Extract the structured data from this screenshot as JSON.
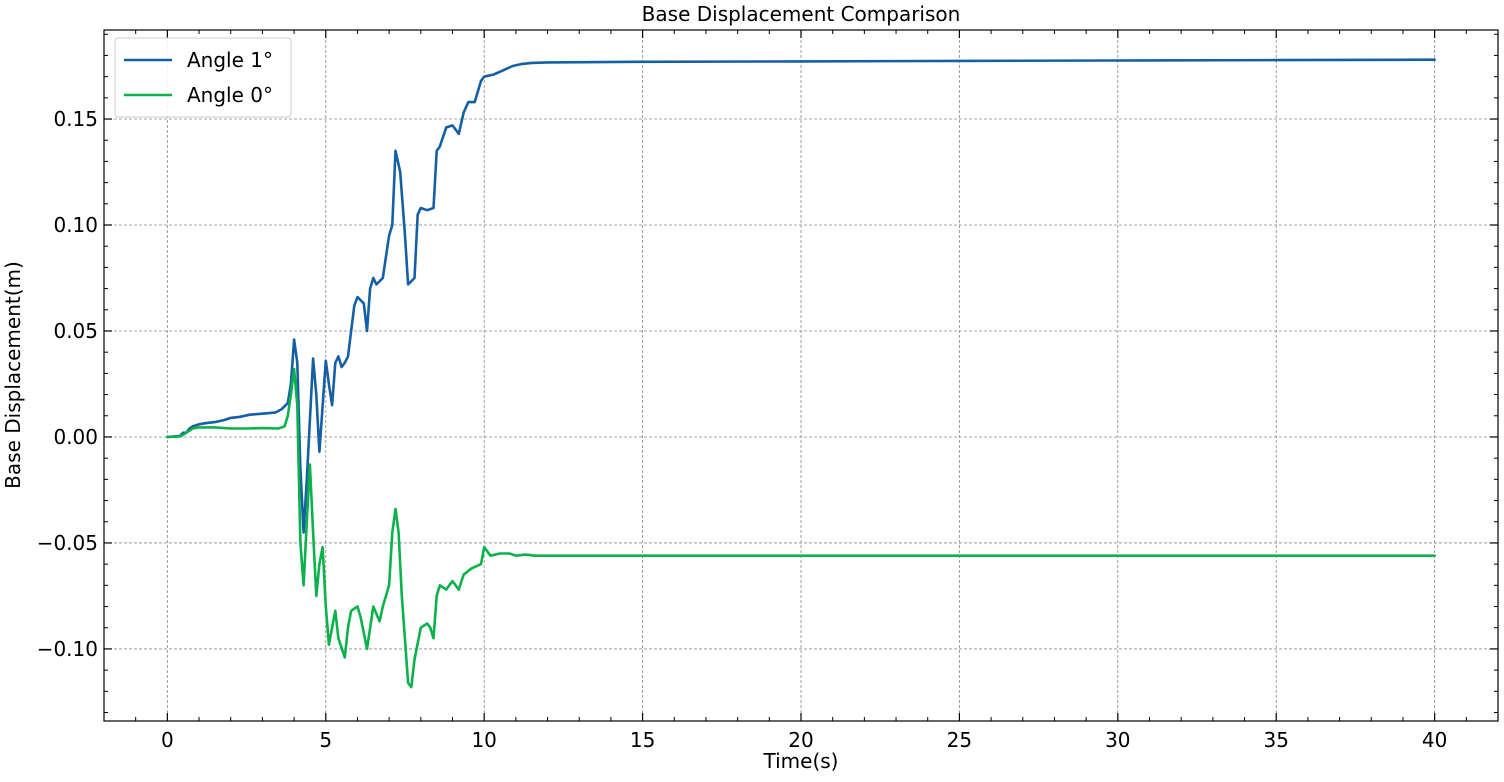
{
  "chart_data": {
    "type": "line",
    "title": "Base Displacement Comparison",
    "xlabel": "Time(s)",
    "ylabel": "Base Displacement(m)",
    "xlim": [
      -2,
      42
    ],
    "ylim": [
      -0.134,
      0.192
    ],
    "x_ticks": [
      0,
      5,
      10,
      15,
      20,
      25,
      30,
      35,
      40
    ],
    "x_tick_labels": [
      "0",
      "5",
      "10",
      "15",
      "20",
      "25",
      "30",
      "35",
      "40"
    ],
    "y_ticks": [
      -0.1,
      -0.05,
      0.0,
      0.05,
      0.1,
      0.15
    ],
    "y_tick_labels": [
      "−0.10",
      "−0.05",
      "0.00",
      "0.05",
      "0.10",
      "0.15"
    ],
    "grid": true,
    "legend_position": "top-left",
    "series": [
      {
        "name": "Angle 1°",
        "color": "#1560a5",
        "points": [
          [
            0,
            0.0
          ],
          [
            0.4,
            0.0005
          ],
          [
            0.5,
            0.002
          ],
          [
            0.6,
            0.002
          ],
          [
            0.7,
            0.004
          ],
          [
            0.8,
            0.005
          ],
          [
            1.0,
            0.006
          ],
          [
            1.2,
            0.0065
          ],
          [
            1.5,
            0.007
          ],
          [
            1.8,
            0.008
          ],
          [
            2.0,
            0.009
          ],
          [
            2.3,
            0.0095
          ],
          [
            2.6,
            0.0105
          ],
          [
            3.0,
            0.011
          ],
          [
            3.4,
            0.0115
          ],
          [
            3.6,
            0.013
          ],
          [
            3.8,
            0.016
          ],
          [
            3.9,
            0.025
          ],
          [
            4.0,
            0.046
          ],
          [
            4.1,
            0.035
          ],
          [
            4.2,
            -0.015
          ],
          [
            4.3,
            -0.045
          ],
          [
            4.4,
            -0.02
          ],
          [
            4.6,
            0.037
          ],
          [
            4.7,
            0.02
          ],
          [
            4.8,
            -0.007
          ],
          [
            5.0,
            0.036
          ],
          [
            5.1,
            0.025
          ],
          [
            5.2,
            0.015
          ],
          [
            5.3,
            0.035
          ],
          [
            5.4,
            0.038
          ],
          [
            5.5,
            0.033
          ],
          [
            5.6,
            0.035
          ],
          [
            5.7,
            0.038
          ],
          [
            5.9,
            0.062
          ],
          [
            6.0,
            0.066
          ],
          [
            6.2,
            0.063
          ],
          [
            6.3,
            0.05
          ],
          [
            6.4,
            0.07
          ],
          [
            6.5,
            0.075
          ],
          [
            6.6,
            0.072
          ],
          [
            6.8,
            0.075
          ],
          [
            7.0,
            0.095
          ],
          [
            7.1,
            0.1
          ],
          [
            7.2,
            0.135
          ],
          [
            7.35,
            0.125
          ],
          [
            7.5,
            0.095
          ],
          [
            7.6,
            0.072
          ],
          [
            7.8,
            0.075
          ],
          [
            7.9,
            0.105
          ],
          [
            8.0,
            0.108
          ],
          [
            8.2,
            0.107
          ],
          [
            8.4,
            0.108
          ],
          [
            8.5,
            0.135
          ],
          [
            8.6,
            0.137
          ],
          [
            8.8,
            0.146
          ],
          [
            9.0,
            0.147
          ],
          [
            9.2,
            0.143
          ],
          [
            9.35,
            0.153
          ],
          [
            9.5,
            0.158
          ],
          [
            9.7,
            0.158
          ],
          [
            9.9,
            0.168
          ],
          [
            10.0,
            0.17
          ],
          [
            10.3,
            0.171
          ],
          [
            10.6,
            0.173
          ],
          [
            10.9,
            0.175
          ],
          [
            11.2,
            0.176
          ],
          [
            11.5,
            0.1765
          ],
          [
            12.0,
            0.1767
          ],
          [
            15,
            0.177
          ],
          [
            20,
            0.1772
          ],
          [
            25,
            0.1774
          ],
          [
            30,
            0.1776
          ],
          [
            35,
            0.1778
          ],
          [
            40,
            0.178
          ]
        ]
      },
      {
        "name": "Angle 0°",
        "color": "#0db14b",
        "points": [
          [
            0,
            0.0
          ],
          [
            0.4,
            0.0002
          ],
          [
            0.5,
            0.001
          ],
          [
            0.7,
            0.003
          ],
          [
            0.8,
            0.004
          ],
          [
            1.0,
            0.0045
          ],
          [
            1.5,
            0.0045
          ],
          [
            2.0,
            0.004
          ],
          [
            2.5,
            0.004
          ],
          [
            3.0,
            0.0042
          ],
          [
            3.5,
            0.004
          ],
          [
            3.7,
            0.005
          ],
          [
            3.8,
            0.01
          ],
          [
            3.9,
            0.02
          ],
          [
            4.0,
            0.032
          ],
          [
            4.1,
            0.015
          ],
          [
            4.2,
            -0.05
          ],
          [
            4.3,
            -0.07
          ],
          [
            4.4,
            -0.04
          ],
          [
            4.5,
            -0.013
          ],
          [
            4.6,
            -0.045
          ],
          [
            4.7,
            -0.075
          ],
          [
            4.8,
            -0.06
          ],
          [
            4.9,
            -0.052
          ],
          [
            5.0,
            -0.08
          ],
          [
            5.1,
            -0.098
          ],
          [
            5.2,
            -0.09
          ],
          [
            5.3,
            -0.082
          ],
          [
            5.4,
            -0.095
          ],
          [
            5.6,
            -0.104
          ],
          [
            5.7,
            -0.09
          ],
          [
            5.8,
            -0.082
          ],
          [
            6.0,
            -0.08
          ],
          [
            6.1,
            -0.085
          ],
          [
            6.3,
            -0.1
          ],
          [
            6.5,
            -0.08
          ],
          [
            6.7,
            -0.087
          ],
          [
            6.8,
            -0.08
          ],
          [
            7.0,
            -0.07
          ],
          [
            7.1,
            -0.045
          ],
          [
            7.2,
            -0.034
          ],
          [
            7.3,
            -0.045
          ],
          [
            7.4,
            -0.075
          ],
          [
            7.6,
            -0.116
          ],
          [
            7.7,
            -0.118
          ],
          [
            7.8,
            -0.105
          ],
          [
            8.0,
            -0.09
          ],
          [
            8.2,
            -0.088
          ],
          [
            8.3,
            -0.09
          ],
          [
            8.4,
            -0.095
          ],
          [
            8.5,
            -0.075
          ],
          [
            8.6,
            -0.07
          ],
          [
            8.8,
            -0.072
          ],
          [
            8.9,
            -0.07
          ],
          [
            9.0,
            -0.068
          ],
          [
            9.2,
            -0.072
          ],
          [
            9.35,
            -0.065
          ],
          [
            9.6,
            -0.062
          ],
          [
            9.9,
            -0.06
          ],
          [
            10.0,
            -0.052
          ],
          [
            10.2,
            -0.056
          ],
          [
            10.5,
            -0.055
          ],
          [
            10.8,
            -0.055
          ],
          [
            11.0,
            -0.056
          ],
          [
            11.3,
            -0.0555
          ],
          [
            11.6,
            -0.056
          ],
          [
            12.0,
            -0.056
          ],
          [
            20,
            -0.056
          ],
          [
            30,
            -0.056
          ],
          [
            40,
            -0.056
          ]
        ]
      }
    ]
  }
}
